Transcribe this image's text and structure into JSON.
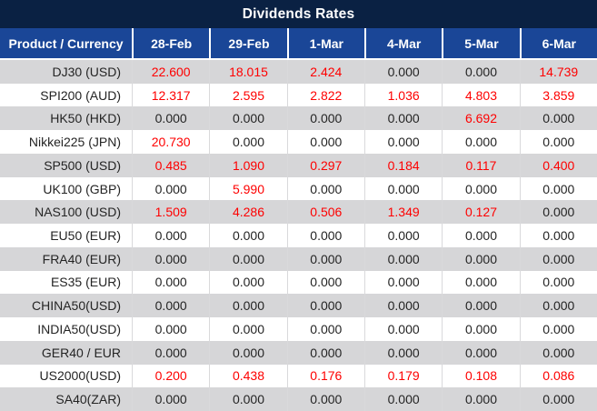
{
  "chart_data": {
    "type": "table",
    "title": "Dividends Rates",
    "columns": [
      "Product / Currency",
      "28-Feb",
      "29-Feb",
      "1-Mar",
      "4-Mar",
      "5-Mar",
      "6-Mar"
    ],
    "rows": [
      {
        "product": "DJ30 (USD)",
        "values": [
          "22.600",
          "18.015",
          "2.424",
          "0.000",
          "0.000",
          "14.739"
        ]
      },
      {
        "product": "SPI200 (AUD)",
        "values": [
          "12.317",
          "2.595",
          "2.822",
          "1.036",
          "4.803",
          "3.859"
        ]
      },
      {
        "product": "HK50 (HKD)",
        "values": [
          "0.000",
          "0.000",
          "0.000",
          "0.000",
          "6.692",
          "0.000"
        ]
      },
      {
        "product": "Nikkei225 (JPN)",
        "values": [
          "20.730",
          "0.000",
          "0.000",
          "0.000",
          "0.000",
          "0.000"
        ]
      },
      {
        "product": "SP500 (USD)",
        "values": [
          "0.485",
          "1.090",
          "0.297",
          "0.184",
          "0.117",
          "0.400"
        ]
      },
      {
        "product": "UK100 (GBP)",
        "values": [
          "0.000",
          "5.990",
          "0.000",
          "0.000",
          "0.000",
          "0.000"
        ]
      },
      {
        "product": "NAS100 (USD)",
        "values": [
          "1.509",
          "4.286",
          "0.506",
          "1.349",
          "0.127",
          "0.000"
        ]
      },
      {
        "product": "EU50 (EUR)",
        "values": [
          "0.000",
          "0.000",
          "0.000",
          "0.000",
          "0.000",
          "0.000"
        ]
      },
      {
        "product": "FRA40 (EUR)",
        "values": [
          "0.000",
          "0.000",
          "0.000",
          "0.000",
          "0.000",
          "0.000"
        ]
      },
      {
        "product": "ES35 (EUR)",
        "values": [
          "0.000",
          "0.000",
          "0.000",
          "0.000",
          "0.000",
          "0.000"
        ]
      },
      {
        "product": "CHINA50(USD)",
        "values": [
          "0.000",
          "0.000",
          "0.000",
          "0.000",
          "0.000",
          "0.000"
        ]
      },
      {
        "product": "INDIA50(USD)",
        "values": [
          "0.000",
          "0.000",
          "0.000",
          "0.000",
          "0.000",
          "0.000"
        ]
      },
      {
        "product": "GER40 / EUR",
        "values": [
          "0.000",
          "0.000",
          "0.000",
          "0.000",
          "0.000",
          "0.000"
        ]
      },
      {
        "product": "US2000(USD)",
        "values": [
          "0.200",
          "0.438",
          "0.176",
          "0.179",
          "0.108",
          "0.086"
        ]
      },
      {
        "product": "SA40(ZAR)",
        "values": [
          "0.000",
          "0.000",
          "0.000",
          "0.000",
          "0.000",
          "0.000"
        ]
      }
    ],
    "layout": {
      "zero_value_text": "0.000",
      "nonzero_color_rule": "values other than 0.000 shown in red"
    }
  },
  "colors": {
    "navy": "#0a2143",
    "header_blue": "#1a4697",
    "zebra_gray": "#d6d6d8",
    "red": "#fe0000",
    "text_dark": "#242424",
    "grid": "#d9d9db",
    "white": "#ffffff"
  }
}
